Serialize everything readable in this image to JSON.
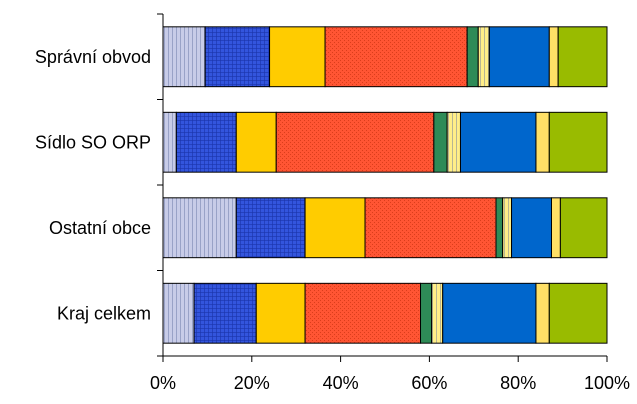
{
  "chart_data": {
    "type": "bar",
    "orientation": "horizontal",
    "stacked": "percent",
    "categories": [
      "Správní obvod",
      "Sídlo SO ORP",
      "Ostatní obce",
      "Kraj celkem"
    ],
    "xlim": [
      0,
      100
    ],
    "xticks": [
      "0%",
      "20%",
      "40%",
      "60%",
      "80%",
      "100%"
    ],
    "legend": "none",
    "grid": false,
    "series": [
      {
        "color": "#C8CCE8",
        "pattern": "vertical-lines",
        "values": [
          9.5,
          3,
          16.5,
          7
        ]
      },
      {
        "color": "#3355DD",
        "pattern": "grid",
        "values": [
          14.5,
          13.5,
          15.5,
          14
        ]
      },
      {
        "color": "#FFCC00",
        "pattern": "none",
        "values": [
          12.5,
          9,
          13.5,
          11
        ]
      },
      {
        "color": "#FF5533",
        "pattern": "dotted",
        "values": [
          32,
          35.5,
          29.5,
          26
        ]
      },
      {
        "color": "#2E8B57",
        "pattern": "none",
        "values": [
          2.5,
          3,
          1.5,
          2.5
        ]
      },
      {
        "color": "#FFEE88",
        "pattern": "vertical-lines",
        "values": [
          2.5,
          3,
          2,
          2.5
        ]
      },
      {
        "color": "#0066CC",
        "pattern": "none",
        "values": [
          13.5,
          17,
          9,
          21
        ]
      },
      {
        "color": "#FFE066",
        "pattern": "none",
        "values": [
          2,
          3,
          2,
          3
        ]
      },
      {
        "color": "#99BB00",
        "pattern": "none",
        "values": [
          11,
          13,
          10.5,
          13
        ]
      }
    ]
  }
}
